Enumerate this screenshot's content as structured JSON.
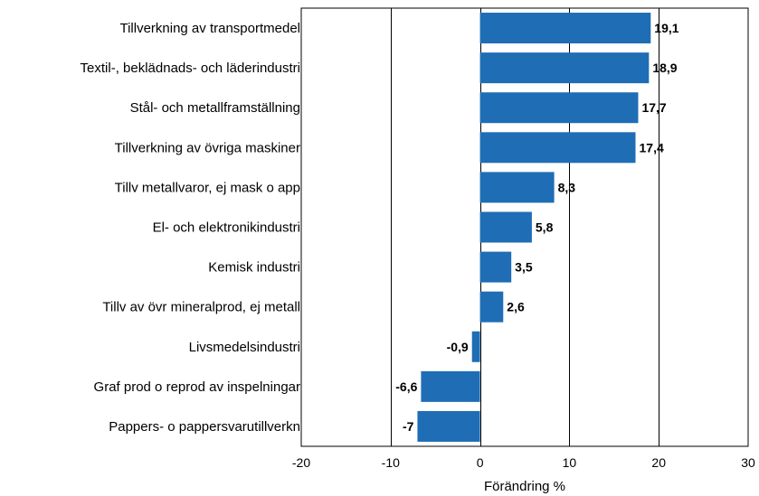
{
  "chart_data": {
    "type": "bar",
    "orientation": "horizontal",
    "categories": [
      "Tillverkning av transportmedel",
      "Textil-, beklädnads- och läderindustri",
      "Stål- och metallframställning",
      "Tillverkning av övriga maskiner",
      "Tillv metallvaror, ej mask o app",
      "El- och elektronikindustri",
      "Kemisk industri",
      "Tillv av övr mineralprod, ej metall",
      "Livsmedelsindustri",
      "Graf prod o reprod av inspelningar",
      "Pappers- o pappersvarutillverkn"
    ],
    "values": [
      19.1,
      18.9,
      17.7,
      17.4,
      8.3,
      5.8,
      3.5,
      2.6,
      -0.9,
      -6.6,
      -7
    ],
    "value_labels": [
      "19,1",
      "18,9",
      "17,7",
      "17,4",
      "8,3",
      "5,8",
      "3,5",
      "2,6",
      "-0,9",
      "-6,6",
      "-7"
    ],
    "title": "",
    "xlabel": "Förändring %",
    "ylabel": "",
    "xlim": [
      -20,
      30
    ],
    "xticks": [
      -20,
      -10,
      0,
      10,
      20,
      30
    ],
    "xtick_labels": [
      "-20",
      "-10",
      "0",
      "10",
      "20",
      "30"
    ],
    "grid": "vertical",
    "legend": "none",
    "bar_color": "#1f6db5"
  }
}
